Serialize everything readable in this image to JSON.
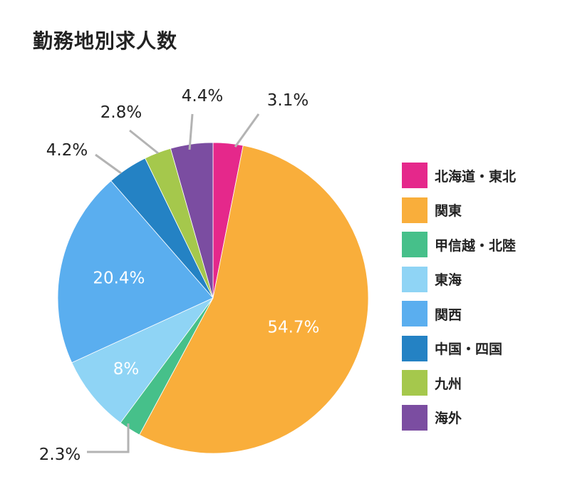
{
  "title": "勤務地別求人数",
  "chart_data": {
    "type": "pie",
    "title": "勤務地別求人数",
    "slices": [
      {
        "label": "北海道・東北",
        "value": 3.1,
        "value_label": "3.1%",
        "color": "#e5288b"
      },
      {
        "label": "関東",
        "value": 54.7,
        "value_label": "54.7%",
        "color": "#f9ae3b"
      },
      {
        "label": "甲信越・北陸",
        "value": 2.3,
        "value_label": "2.3%",
        "color": "#46c08a"
      },
      {
        "label": "東海",
        "value": 8,
        "value_label": "8%",
        "color": "#8fd4f5"
      },
      {
        "label": "関西",
        "value": 20.4,
        "value_label": "20.4%",
        "color": "#5aaeef"
      },
      {
        "label": "中国・四国",
        "value": 4.2,
        "value_label": "4.2%",
        "color": "#2482c4"
      },
      {
        "label": "九州",
        "value": 2.8,
        "value_label": "2.8%",
        "color": "#a5c84c"
      },
      {
        "label": "海外",
        "value": 4.4,
        "value_label": "4.4%",
        "color": "#7b4da1"
      }
    ],
    "legend_position": "right",
    "start_angle": "12 o'clock, clockwise"
  }
}
